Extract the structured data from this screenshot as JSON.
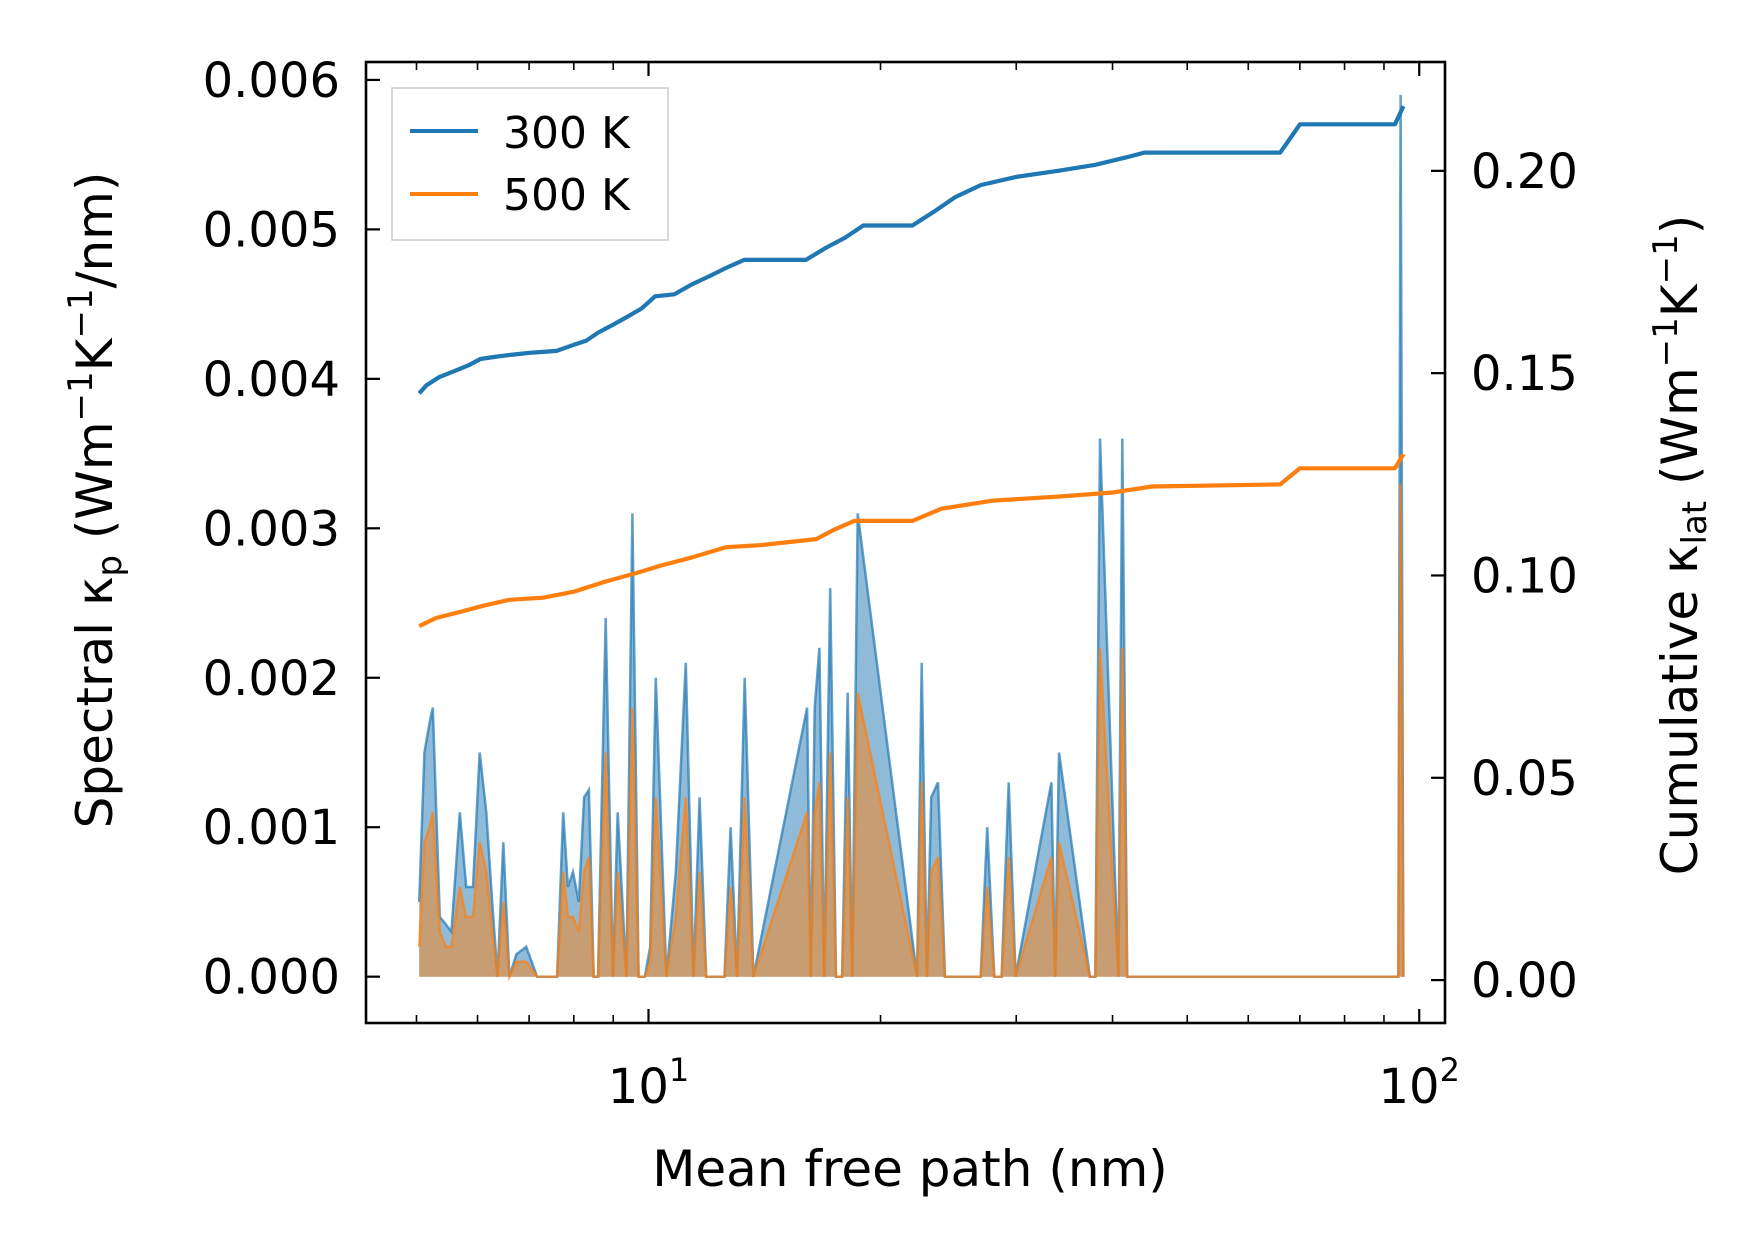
{
  "chart_data": {
    "type": "line",
    "x_scale": "log",
    "xlabel": "Mean free path (nm)",
    "ylabel_left": {
      "main": "Spectral κ",
      "sub": "p",
      "units_pre": " (Wm",
      "exp1": "−1",
      "mid": "K",
      "exp2": "−1",
      "post": "/nm)"
    },
    "ylabel_right": {
      "main": "Cumulative κ",
      "sub": "lat",
      "units_pre": " (Wm",
      "exp1": "−1",
      "mid": "K",
      "exp2": "−1",
      "post": ")"
    },
    "xlim": [
      4.3,
      108
    ],
    "ylim_left": [
      -0.00031,
      0.00612
    ],
    "ylim_right": [
      -0.0106,
      0.2269
    ],
    "xticks": [
      {
        "base": "10",
        "exp": "1",
        "value": 10
      },
      {
        "base": "10",
        "exp": "2",
        "value": 100
      }
    ],
    "yticks_left": [
      {
        "value": 0.0,
        "label": "0.000"
      },
      {
        "value": 0.001,
        "label": "0.001"
      },
      {
        "value": 0.002,
        "label": "0.002"
      },
      {
        "value": 0.003,
        "label": "0.003"
      },
      {
        "value": 0.004,
        "label": "0.004"
      },
      {
        "value": 0.005,
        "label": "0.005"
      },
      {
        "value": 0.006,
        "label": "0.006"
      }
    ],
    "yticks_right": [
      {
        "value": 0.0,
        "label": "0.00"
      },
      {
        "value": 0.05,
        "label": "0.05"
      },
      {
        "value": 0.1,
        "label": "0.10"
      },
      {
        "value": 0.15,
        "label": "0.15"
      },
      {
        "value": 0.2,
        "label": "0.20"
      }
    ],
    "legend": {
      "position": "top-left",
      "entries": [
        {
          "label": "300 K",
          "color": "#1f77b4"
        },
        {
          "label": "500 K",
          "color": "#ff7f0e"
        }
      ]
    },
    "series": [
      {
        "name": "300 K",
        "color": "#1f77b4",
        "axis": "left",
        "kind": "spectral-fill",
        "x": [
          5.04,
          5.12,
          5.2,
          5.25,
          5.36,
          5.46,
          5.55,
          5.69,
          5.8,
          5.92,
          6.04,
          6.16,
          6.27,
          6.37,
          6.48,
          6.6,
          6.74,
          6.94,
          7.17,
          7.61,
          7.75,
          7.86,
          7.98,
          8.12,
          8.25,
          8.37,
          8.49,
          8.6,
          8.8,
          8.99,
          9.12,
          9.36,
          9.53,
          9.71,
          9.89,
          10.05,
          10.22,
          10.55,
          10.85,
          11.18,
          11.44,
          11.65,
          11.88,
          12.12,
          12.35,
          12.55,
          12.78,
          13.03,
          13.33,
          13.68,
          16.06,
          16.24,
          16.43,
          16.66,
          16.91,
          17.21,
          17.51,
          17.83,
          18.13,
          18.38,
          18.68,
          22.31,
          22.62,
          22.97,
          23.27,
          23.75,
          24.25,
          24.82,
          26.98,
          27.51,
          28.1,
          28.72,
          29.33,
          29.94,
          33.32,
          33.69,
          34.09,
          37.39,
          37.99,
          38.53,
          40.71,
          41.19,
          41.79,
          42.46,
          43.06,
          44.16,
          66.21,
          67.26,
          68.17,
          69.6,
          70.6,
          93.95,
          94.59,
          95.39
        ],
        "y": [
          0.0005,
          0.0015,
          0.0017,
          0.0018,
          0.0004,
          0.00035,
          0.0003,
          0.0011,
          0.0006,
          0.0006,
          0.0015,
          0.0011,
          0.0005,
          0.0,
          0.0009,
          0.0,
          0.00015,
          0.0002,
          0.0,
          0.0,
          0.0011,
          0.0006,
          0.0007,
          0.0005,
          0.0012,
          0.00125,
          0.0,
          0.0,
          0.0024,
          0.0,
          0.0011,
          0.0,
          0.0031,
          0.0,
          0.0,
          0.0002,
          0.002,
          0.0,
          0.0007,
          0.0021,
          0.0,
          0.0012,
          0.0,
          0.0,
          0.0,
          0.0,
          0.001,
          0.0,
          0.002,
          0.0,
          0.0018,
          0.0,
          0.0018,
          0.0022,
          0.0,
          0.0026,
          0.0,
          0.0,
          0.0019,
          0.0,
          0.0031,
          0.0,
          0.0021,
          0.0,
          0.0012,
          0.0013,
          0.0,
          0.0,
          0.0,
          0.001,
          0.0,
          0.0,
          0.0013,
          0.0,
          0.0013,
          0.0,
          0.0015,
          0.0,
          0.0,
          0.0036,
          0.0,
          0.0036,
          0.0,
          0.0,
          0.0,
          0.0,
          0.0,
          0.0,
          0.0,
          0.0,
          0.0,
          0.0,
          0.0059,
          0.0
        ]
      },
      {
        "name": "500 K",
        "color": "#ff7f0e",
        "axis": "left",
        "kind": "spectral-fill",
        "x": [
          5.04,
          5.12,
          5.2,
          5.25,
          5.36,
          5.46,
          5.55,
          5.69,
          5.8,
          5.92,
          6.04,
          6.16,
          6.27,
          6.37,
          6.48,
          6.6,
          6.74,
          6.94,
          7.17,
          7.61,
          7.75,
          7.86,
          7.98,
          8.12,
          8.25,
          8.37,
          8.49,
          8.6,
          8.8,
          8.99,
          9.12,
          9.36,
          9.53,
          9.71,
          9.89,
          10.05,
          10.22,
          10.55,
          10.85,
          11.18,
          11.44,
          11.65,
          11.88,
          12.12,
          12.35,
          12.55,
          12.78,
          13.03,
          13.33,
          13.68,
          16.06,
          16.24,
          16.43,
          16.66,
          16.91,
          17.21,
          17.51,
          17.83,
          18.13,
          18.38,
          18.68,
          22.31,
          22.62,
          22.97,
          23.27,
          23.75,
          24.25,
          24.82,
          26.98,
          27.51,
          28.1,
          28.72,
          29.33,
          29.94,
          33.32,
          33.69,
          34.09,
          37.39,
          37.99,
          38.53,
          40.71,
          41.19,
          41.79,
          42.46,
          43.06,
          44.16,
          66.21,
          67.26,
          68.17,
          69.6,
          70.6,
          93.95,
          94.59,
          95.39
        ],
        "y": [
          0.0002,
          0.0009,
          0.001,
          0.0011,
          0.0003,
          0.0002,
          0.0002,
          0.0006,
          0.0004,
          0.0004,
          0.0009,
          0.0007,
          0.0003,
          0.0,
          0.0005,
          0.0,
          0.0001,
          0.0001,
          0.0,
          0.0,
          0.0007,
          0.0004,
          0.0004,
          0.0003,
          0.0007,
          0.0008,
          0.0,
          0.0,
          0.0015,
          0.0,
          0.0007,
          0.0,
          0.0018,
          0.0,
          0.0,
          0.0001,
          0.0012,
          0.0,
          0.0004,
          0.0012,
          0.0,
          0.0007,
          0.0,
          0.0,
          0.0,
          0.0,
          0.0006,
          0.0,
          0.0012,
          0.0,
          0.0011,
          0.0,
          0.0011,
          0.0013,
          0.0,
          0.0015,
          0.0,
          0.0,
          0.0012,
          0.0,
          0.0019,
          0.0,
          0.0013,
          0.0,
          0.0007,
          0.0008,
          0.0,
          0.0,
          0.0,
          0.0006,
          0.0,
          0.0,
          0.0008,
          0.0,
          0.0008,
          0.0,
          0.0009,
          0.0,
          0.0,
          0.0022,
          0.0,
          0.0022,
          0.0,
          0.0,
          0.0,
          0.0,
          0.0,
          0.0,
          0.0,
          0.0,
          0.0,
          0.0,
          0.0033,
          0.0
        ]
      },
      {
        "name": "300 K",
        "color": "#1f77b4",
        "axis": "right",
        "kind": "cumulative",
        "x": [
          5.04,
          5.15,
          5.35,
          5.6,
          5.85,
          6.05,
          6.3,
          6.6,
          7.0,
          7.6,
          8.0,
          8.3,
          8.6,
          9.0,
          9.4,
          9.8,
          10.2,
          10.8,
          11.4,
          12.0,
          12.6,
          13.3,
          14.0,
          16.0,
          17.0,
          18.0,
          19.0,
          22.0,
          23.5,
          25.0,
          27.0,
          30.0,
          34.0,
          38.0,
          42.0,
          44.0,
          50.0,
          66.0,
          68.0,
          70.0,
          80.0,
          93.0,
          95.4
        ],
        "y": [
          0.145,
          0.147,
          0.149,
          0.1505,
          0.152,
          0.1535,
          0.154,
          0.1545,
          0.155,
          0.1555,
          0.157,
          0.158,
          0.16,
          0.162,
          0.164,
          0.166,
          0.169,
          0.1695,
          0.172,
          0.174,
          0.176,
          0.178,
          0.178,
          0.178,
          0.181,
          0.1835,
          0.1865,
          0.1865,
          0.19,
          0.1935,
          0.1965,
          0.1985,
          0.2,
          0.2015,
          0.2035,
          0.2045,
          0.2045,
          0.2045,
          0.208,
          0.2115,
          0.2115,
          0.2115,
          0.216
        ]
      },
      {
        "name": "500 K",
        "color": "#ff7f0e",
        "axis": "right",
        "kind": "cumulative",
        "x": [
          5.04,
          5.3,
          5.7,
          6.1,
          6.6,
          7.3,
          8.0,
          8.8,
          9.6,
          10.4,
          11.4,
          12.6,
          14.0,
          16.5,
          17.5,
          18.5,
          22.0,
          24.0,
          28.0,
          34.0,
          40.0,
          45.0,
          66.0,
          70.0,
          93.0,
          95.4
        ],
        "y": [
          0.0875,
          0.0895,
          0.091,
          0.0925,
          0.094,
          0.0945,
          0.096,
          0.0985,
          0.1005,
          0.1025,
          0.1045,
          0.107,
          0.1075,
          0.109,
          0.1115,
          0.1135,
          0.1135,
          0.1165,
          0.1185,
          0.1195,
          0.1205,
          0.122,
          0.1225,
          0.1265,
          0.1265,
          0.13
        ]
      }
    ]
  }
}
